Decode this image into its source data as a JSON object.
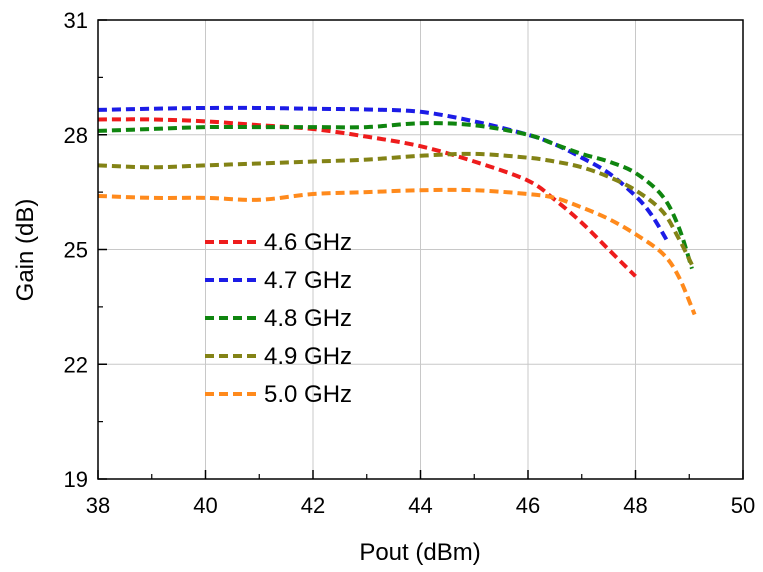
{
  "chart_data": {
    "type": "line",
    "title": "",
    "xlabel": "Pout (dBm)",
    "ylabel": "Gain (dB)",
    "xlim": [
      38,
      50
    ],
    "ylim": [
      19,
      31
    ],
    "xticks": [
      38,
      40,
      42,
      44,
      46,
      48,
      50
    ],
    "yticks": [
      19,
      22,
      25,
      28,
      31
    ],
    "grid": true,
    "legend_position": "left-center",
    "series": [
      {
        "name": "4.6 GHz",
        "color": "#ee1c1c",
        "x": [
          38,
          39,
          40,
          41,
          42,
          43,
          44,
          45,
          46,
          46.5,
          47,
          47.5,
          48
        ],
        "y": [
          28.4,
          28.4,
          28.35,
          28.25,
          28.15,
          27.95,
          27.7,
          27.3,
          26.8,
          26.3,
          25.7,
          25.0,
          24.3
        ]
      },
      {
        "name": "4.7 GHz",
        "color": "#1c1ce6",
        "x": [
          38,
          39,
          40,
          41,
          42,
          43,
          44,
          45,
          46,
          46.5,
          47,
          47.5,
          48,
          48.3,
          48.6
        ],
        "y": [
          28.65,
          28.68,
          28.7,
          28.7,
          28.68,
          28.66,
          28.6,
          28.35,
          28.0,
          27.75,
          27.4,
          27.0,
          26.4,
          25.9,
          25.2
        ]
      },
      {
        "name": "4.8 GHz",
        "color": "#0f850f",
        "x": [
          38,
          39,
          40,
          41,
          42,
          43,
          44,
          45,
          46,
          46.5,
          47,
          47.5,
          48,
          48.5,
          48.8,
          49.05
        ],
        "y": [
          28.1,
          28.15,
          28.2,
          28.2,
          28.2,
          28.2,
          28.3,
          28.25,
          28.0,
          27.75,
          27.5,
          27.3,
          27.0,
          26.4,
          25.6,
          24.5
        ]
      },
      {
        "name": "4.9 GHz",
        "color": "#838316",
        "x": [
          38,
          39,
          40,
          41,
          42,
          43,
          44,
          45,
          46,
          46.5,
          47,
          47.5,
          48,
          48.5,
          48.8,
          49.05
        ],
        "y": [
          27.2,
          27.15,
          27.2,
          27.25,
          27.3,
          27.35,
          27.45,
          27.5,
          27.4,
          27.3,
          27.15,
          26.9,
          26.55,
          26.0,
          25.3,
          24.6
        ]
      },
      {
        "name": "5.0 GHz",
        "color": "#ff8a1c",
        "x": [
          38,
          39,
          40,
          41,
          42,
          43,
          44,
          45,
          46,
          46.5,
          47,
          47.5,
          48,
          48.5,
          48.8,
          49.1
        ],
        "y": [
          26.4,
          26.35,
          26.35,
          26.3,
          26.45,
          26.5,
          26.55,
          26.55,
          26.45,
          26.35,
          26.1,
          25.8,
          25.4,
          24.9,
          24.3,
          23.3
        ]
      }
    ]
  }
}
